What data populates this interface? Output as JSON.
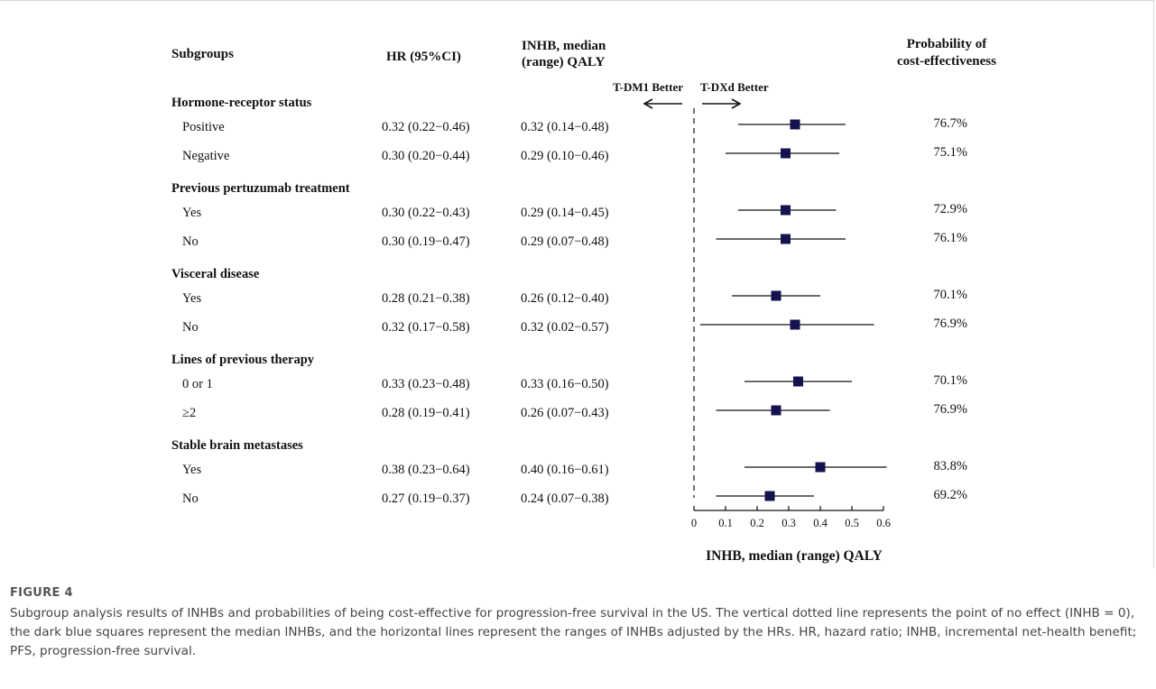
{
  "caption": {
    "label": "FIGURE 4",
    "text": "Subgroup analysis results of INHBs and probabilities of being cost-effective for progression-free survival in the US. The vertical dotted line represents the point of no effect (INHB = 0), the dark blue squares represent the median INHBs, and the horizontal lines represent the ranges of INHBs adjusted by the HRs. HR, hazard ratio; INHB, incremental net-health benefit; PFS, progression-free survival."
  },
  "chart_data": {
    "type": "forest",
    "columns": {
      "subgroups": "Subgroups",
      "hr": "HR (95%CI)",
      "inhb": [
        "INHB, median",
        "(range) QALY"
      ],
      "prob": [
        "Probability of",
        "cost-effectiveness"
      ]
    },
    "arrow_left_label": "T-DM1 Better",
    "arrow_right_label": "T-DXd Better",
    "xlabel": "INHB, median (range) QALY",
    "xlim": [
      0,
      0.6
    ],
    "xticks": [
      "0",
      "0.1",
      "0.2",
      "0.3",
      "0.4",
      "0.5",
      "0.6"
    ],
    "reference_line": 0,
    "marker_color": "#14124f",
    "groups": [
      {
        "name": "Hormone-receptor status",
        "rows": [
          {
            "label": "Positive",
            "hr": "0.32 (0.22−0.46)",
            "inhb": "0.32 (0.14−0.48)",
            "median": 0.32,
            "low": 0.14,
            "high": 0.48,
            "prob": "76.7%"
          },
          {
            "label": "Negative",
            "hr": "0.30 (0.20−0.44)",
            "inhb": "0.29 (0.10−0.46)",
            "median": 0.29,
            "low": 0.1,
            "high": 0.46,
            "prob": "75.1%"
          }
        ]
      },
      {
        "name": "Previous pertuzumab treatment",
        "rows": [
          {
            "label": "Yes",
            "hr": "0.30 (0.22−0.43)",
            "inhb": "0.29 (0.14−0.45)",
            "median": 0.29,
            "low": 0.14,
            "high": 0.45,
            "prob": "72.9%"
          },
          {
            "label": "No",
            "hr": "0.30 (0.19−0.47)",
            "inhb": "0.29 (0.07−0.48)",
            "median": 0.29,
            "low": 0.07,
            "high": 0.48,
            "prob": "76.1%"
          }
        ]
      },
      {
        "name": "Visceral disease",
        "rows": [
          {
            "label": "Yes",
            "hr": "0.28 (0.21−0.38)",
            "inhb": "0.26 (0.12−0.40)",
            "median": 0.26,
            "low": 0.12,
            "high": 0.4,
            "prob": "70.1%"
          },
          {
            "label": "No",
            "hr": "0.32 (0.17−0.58)",
            "inhb": "0.32 (0.02−0.57)",
            "median": 0.32,
            "low": 0.02,
            "high": 0.57,
            "prob": "76.9%"
          }
        ]
      },
      {
        "name": "Lines of previous therapy",
        "rows": [
          {
            "label": "0 or 1",
            "hr": "0.33 (0.23−0.48)",
            "inhb": "0.33 (0.16−0.50)",
            "median": 0.33,
            "low": 0.16,
            "high": 0.5,
            "prob": "70.1%"
          },
          {
            "label": "≥2",
            "hr": "0.28 (0.19−0.41)",
            "inhb": "0.26 (0.07−0.43)",
            "median": 0.26,
            "low": 0.07,
            "high": 0.43,
            "prob": "76.9%"
          }
        ]
      },
      {
        "name": "Stable brain metastases",
        "rows": [
          {
            "label": "Yes",
            "hr": "0.38 (0.23−0.64)",
            "inhb": "0.40 (0.16−0.61)",
            "median": 0.4,
            "low": 0.16,
            "high": 0.61,
            "prob": "83.8%"
          },
          {
            "label": "No",
            "hr": "0.27 (0.19−0.37)",
            "inhb": "0.24 (0.07−0.38)",
            "median": 0.24,
            "low": 0.07,
            "high": 0.38,
            "prob": "69.2%"
          }
        ]
      }
    ]
  }
}
